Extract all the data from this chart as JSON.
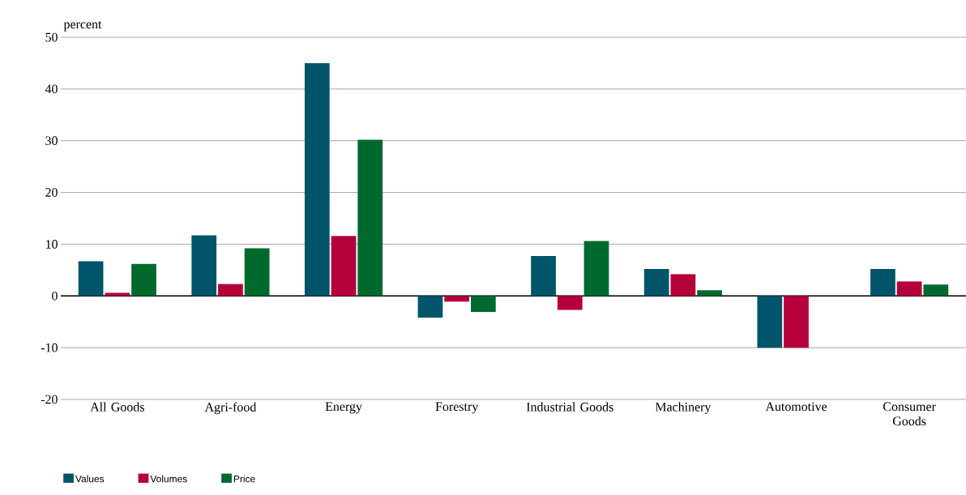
{
  "chart_data": {
    "type": "bar",
    "ylabel": "percent",
    "categories": [
      "All Goods",
      "Agri-food",
      "Energy",
      "Forestry",
      "Industrial Goods",
      "Machinery",
      "Automotive",
      "Consumer Goods"
    ],
    "series": [
      {
        "name": "Values",
        "color": "#00556a",
        "values": [
          6.7,
          11.7,
          45,
          -4.2,
          7.7,
          5.2,
          -10,
          5.2
        ]
      },
      {
        "name": "Volumes",
        "color": "#b5003a",
        "values": [
          0.6,
          2.3,
          11.6,
          -1.1,
          -2.7,
          4.2,
          -10,
          2.8
        ]
      },
      {
        "name": "Price",
        "color": "#006a2e",
        "values": [
          6.2,
          9.2,
          30.2,
          -3.1,
          10.6,
          1.1,
          0,
          2.2
        ]
      }
    ],
    "ylim": [
      -20,
      50
    ],
    "yticks": [
      -20,
      -10,
      0,
      10,
      20,
      30,
      40,
      50
    ],
    "grid": "y",
    "legend": "bottom left"
  }
}
